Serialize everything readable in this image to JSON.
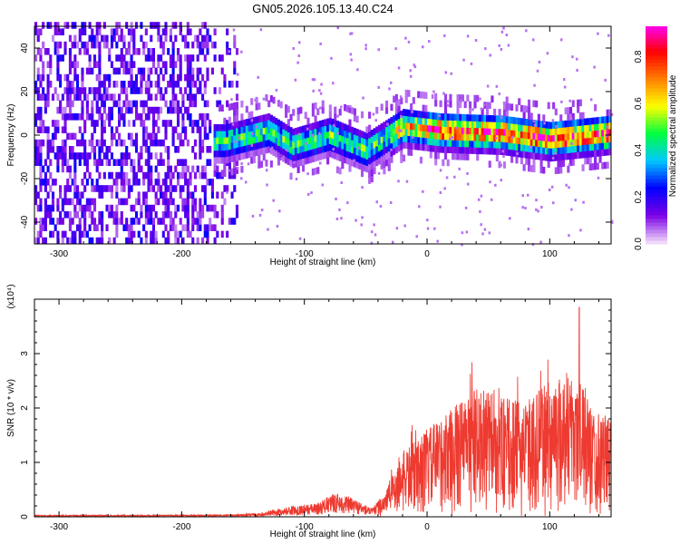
{
  "chart_data": [
    {
      "type": "heatmap",
      "title": "GN05.2026.105.13.40.C24",
      "xlabel": "Height of straight line (km)",
      "ylabel": "Frequency (Hz)",
      "xlim": [
        -320,
        150
      ],
      "ylim": [
        -50,
        50
      ],
      "x_ticks": [
        -300,
        -200,
        -100,
        0,
        100
      ],
      "y_ticks": [
        -40,
        -20,
        0,
        20,
        40
      ],
      "colorbar": {
        "label": "Normalized spectral amplitude",
        "range": [
          0.0,
          0.93
        ],
        "ticks": [
          0.0,
          0.2,
          0.4,
          0.6,
          0.8
        ],
        "colormap": "rainbow",
        "colors": [
          "#f0d8fa",
          "#7a00e6",
          "#0000ff",
          "#00c8ff",
          "#00ff40",
          "#ffff00",
          "#ff8000",
          "#ff0000",
          "#ff00ff"
        ]
      },
      "regions": [
        {
          "name": "broadband",
          "x_range": [
            -320,
            -165
          ],
          "freq_range": [
            -50,
            50
          ],
          "amplitude": 0.1
        },
        {
          "name": "tone",
          "x_range": [
            -165,
            150
          ],
          "center_freq_profile": [
            {
              "x": -165,
              "freq": -3
            },
            {
              "x": -130,
              "freq": 2
            },
            {
              "x": -110,
              "freq": -5
            },
            {
              "x": -80,
              "freq": 0
            },
            {
              "x": -50,
              "freq": -7
            },
            {
              "x": -20,
              "freq": 4
            },
            {
              "x": 10,
              "freq": 2
            },
            {
              "x": 60,
              "freq": 1
            },
            {
              "x": 100,
              "freq": -2
            },
            {
              "x": 150,
              "freq": 1
            }
          ],
          "peak_amplitude": 0.9
        }
      ]
    },
    {
      "type": "line",
      "title": "",
      "xlabel": "Height of straight line (km)",
      "ylabel": "SNR (10 * v/v)",
      "y_multiplier": "(x10⁴)",
      "color": "#ee3a30",
      "xlim": [
        -320,
        150
      ],
      "ylim": [
        0,
        4
      ],
      "x_ticks": [
        -300,
        -200,
        -100,
        0,
        100
      ],
      "y_ticks": [
        0,
        1,
        2,
        3
      ],
      "envelope": [
        {
          "x": -320,
          "y": 0.03
        },
        {
          "x": -160,
          "y": 0.04
        },
        {
          "x": -135,
          "y": 0.08
        },
        {
          "x": -110,
          "y": 0.2
        },
        {
          "x": -90,
          "y": 0.25
        },
        {
          "x": -75,
          "y": 0.45
        },
        {
          "x": -60,
          "y": 0.35
        },
        {
          "x": -45,
          "y": 0.15
        },
        {
          "x": -35,
          "y": 0.45
        },
        {
          "x": -20,
          "y": 1.2
        },
        {
          "x": 0,
          "y": 1.6
        },
        {
          "x": 20,
          "y": 2.0
        },
        {
          "x": 40,
          "y": 2.4
        },
        {
          "x": 60,
          "y": 2.2
        },
        {
          "x": 80,
          "y": 2.1
        },
        {
          "x": 100,
          "y": 2.5
        },
        {
          "x": 120,
          "y": 2.7
        },
        {
          "x": 135,
          "y": 2.0
        },
        {
          "x": 150,
          "y": 1.8
        }
      ],
      "max_value": 3.85,
      "max_at_x": 124
    }
  ]
}
